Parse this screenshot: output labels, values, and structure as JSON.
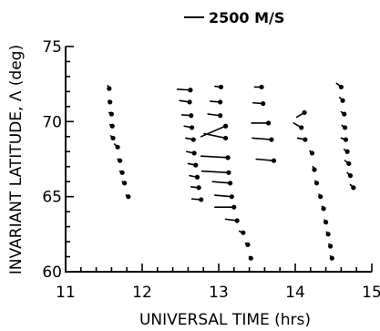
{
  "chart_data": {
    "type": "scatter",
    "xlabel": "UNIVERSAL TIME (hrs)",
    "ylabel": "INVARIANT LATITUDE, Λ (deg)",
    "xlim": [
      11,
      15
    ],
    "ylim": [
      60,
      75
    ],
    "x_ticks": [
      11,
      12,
      13,
      14,
      15
    ],
    "y_ticks": [
      60,
      65,
      70,
      75
    ],
    "grid": false,
    "legend": {
      "placement": "top-center",
      "label": "2500 M/S",
      "reference_speed_ms": 2500
    },
    "vector_note": "Each sample is a dot with a tail; tail length ~ flow speed (reference 2500 m/s). Tail end given as dx (hrs) / dy (deg) from the dot.",
    "vectors": [
      {
        "x": 11.57,
        "y": 72.2,
        "dx": -0.02,
        "dy": 0.2
      },
      {
        "x": 11.58,
        "y": 71.3,
        "dx": -0.02,
        "dy": 0.1
      },
      {
        "x": 11.6,
        "y": 70.5,
        "dx": -0.03,
        "dy": 0.1
      },
      {
        "x": 11.61,
        "y": 69.7,
        "dx": -0.03,
        "dy": 0.1
      },
      {
        "x": 11.62,
        "y": 68.9,
        "dx": -0.03,
        "dy": 0.15
      },
      {
        "x": 11.68,
        "y": 68.3,
        "dx": -0.04,
        "dy": 0.2
      },
      {
        "x": 11.71,
        "y": 67.4,
        "dx": -0.03,
        "dy": 0.1
      },
      {
        "x": 11.74,
        "y": 66.6,
        "dx": -0.03,
        "dy": 0.1
      },
      {
        "x": 11.77,
        "y": 65.9,
        "dx": -0.03,
        "dy": 0.1
      },
      {
        "x": 11.82,
        "y": 65.0,
        "dx": -0.03,
        "dy": 0.1
      },
      {
        "x": 12.63,
        "y": 72.1,
        "dx": -0.17,
        "dy": 0.05
      },
      {
        "x": 12.62,
        "y": 71.3,
        "dx": -0.13,
        "dy": 0.1
      },
      {
        "x": 12.64,
        "y": 70.4,
        "dx": -0.12,
        "dy": 0.05
      },
      {
        "x": 12.65,
        "y": 69.6,
        "dx": -0.1,
        "dy": 0.1
      },
      {
        "x": 12.67,
        "y": 68.8,
        "dx": -0.1,
        "dy": 0.1
      },
      {
        "x": 12.68,
        "y": 67.9,
        "dx": -0.1,
        "dy": 0.1
      },
      {
        "x": 12.7,
        "y": 67.1,
        "dx": -0.1,
        "dy": 0.1
      },
      {
        "x": 12.72,
        "y": 66.3,
        "dx": -0.1,
        "dy": 0.1
      },
      {
        "x": 12.74,
        "y": 65.6,
        "dx": -0.1,
        "dy": 0.05
      },
      {
        "x": 12.77,
        "y": 64.8,
        "dx": -0.12,
        "dy": 0.05
      },
      {
        "x": 13.03,
        "y": 72.3,
        "dx": -0.08,
        "dy": 0.05
      },
      {
        "x": 13.02,
        "y": 71.3,
        "dx": -0.13,
        "dy": 0.05
      },
      {
        "x": 13.02,
        "y": 70.4,
        "dx": -0.16,
        "dy": 0.1
      },
      {
        "x": 13.09,
        "y": 69.7,
        "dx": -0.32,
        "dy": -0.7
      },
      {
        "x": 13.09,
        "y": 68.9,
        "dx": -0.28,
        "dy": 0.3
      },
      {
        "x": 13.12,
        "y": 67.6,
        "dx": -0.35,
        "dy": 0.1
      },
      {
        "x": 13.13,
        "y": 66.6,
        "dx": -0.35,
        "dy": 0.1
      },
      {
        "x": 13.15,
        "y": 65.9,
        "dx": -0.23,
        "dy": 0.1
      },
      {
        "x": 13.17,
        "y": 65.0,
        "dx": -0.22,
        "dy": 0.1
      },
      {
        "x": 13.2,
        "y": 64.3,
        "dx": -0.25,
        "dy": 0.0
      },
      {
        "x": 13.24,
        "y": 63.4,
        "dx": -0.15,
        "dy": 0.1
      },
      {
        "x": 13.32,
        "y": 62.6,
        "dx": -0.05,
        "dy": 0.1
      },
      {
        "x": 13.38,
        "y": 61.8,
        "dx": -0.03,
        "dy": 0.1
      },
      {
        "x": 13.42,
        "y": 60.9,
        "dx": -0.02,
        "dy": 0.1
      },
      {
        "x": 13.56,
        "y": 72.3,
        "dx": -0.09,
        "dy": 0.0
      },
      {
        "x": 13.58,
        "y": 71.2,
        "dx": -0.13,
        "dy": 0.05
      },
      {
        "x": 13.65,
        "y": 69.9,
        "dx": -0.22,
        "dy": 0.0
      },
      {
        "x": 13.69,
        "y": 68.8,
        "dx": -0.25,
        "dy": 0.1
      },
      {
        "x": 13.72,
        "y": 67.4,
        "dx": -0.23,
        "dy": 0.1
      },
      {
        "x": 14.12,
        "y": 70.6,
        "dx": -0.1,
        "dy": -0.3
      },
      {
        "x": 14.08,
        "y": 69.6,
        "dx": -0.1,
        "dy": 0.3
      },
      {
        "x": 14.13,
        "y": 68.8,
        "dx": -0.1,
        "dy": 0.1
      },
      {
        "x": 14.22,
        "y": 67.9,
        "dx": -0.03,
        "dy": 0.15
      },
      {
        "x": 14.25,
        "y": 66.8,
        "dx": -0.02,
        "dy": 0.2
      },
      {
        "x": 14.28,
        "y": 65.9,
        "dx": -0.02,
        "dy": 0.15
      },
      {
        "x": 14.33,
        "y": 65.0,
        "dx": -0.02,
        "dy": 0.15
      },
      {
        "x": 14.37,
        "y": 64.2,
        "dx": -0.02,
        "dy": 0.15
      },
      {
        "x": 14.4,
        "y": 63.3,
        "dx": -0.02,
        "dy": 0.15
      },
      {
        "x": 14.43,
        "y": 62.5,
        "dx": -0.02,
        "dy": 0.15
      },
      {
        "x": 14.46,
        "y": 61.7,
        "dx": -0.02,
        "dy": 0.15
      },
      {
        "x": 14.48,
        "y": 60.9,
        "dx": -0.02,
        "dy": 0.15
      },
      {
        "x": 14.6,
        "y": 72.3,
        "dx": -0.06,
        "dy": 0.25
      },
      {
        "x": 14.62,
        "y": 71.4,
        "dx": -0.04,
        "dy": 0.2
      },
      {
        "x": 14.64,
        "y": 70.5,
        "dx": -0.04,
        "dy": 0.15
      },
      {
        "x": 14.65,
        "y": 69.6,
        "dx": -0.04,
        "dy": 0.15
      },
      {
        "x": 14.66,
        "y": 68.8,
        "dx": -0.06,
        "dy": 0.1
      },
      {
        "x": 14.68,
        "y": 68.0,
        "dx": -0.04,
        "dy": 0.15
      },
      {
        "x": 14.7,
        "y": 67.2,
        "dx": -0.05,
        "dy": 0.2
      },
      {
        "x": 14.72,
        "y": 66.4,
        "dx": -0.04,
        "dy": 0.2
      },
      {
        "x": 14.76,
        "y": 65.6,
        "dx": -0.04,
        "dy": 0.2
      }
    ]
  }
}
